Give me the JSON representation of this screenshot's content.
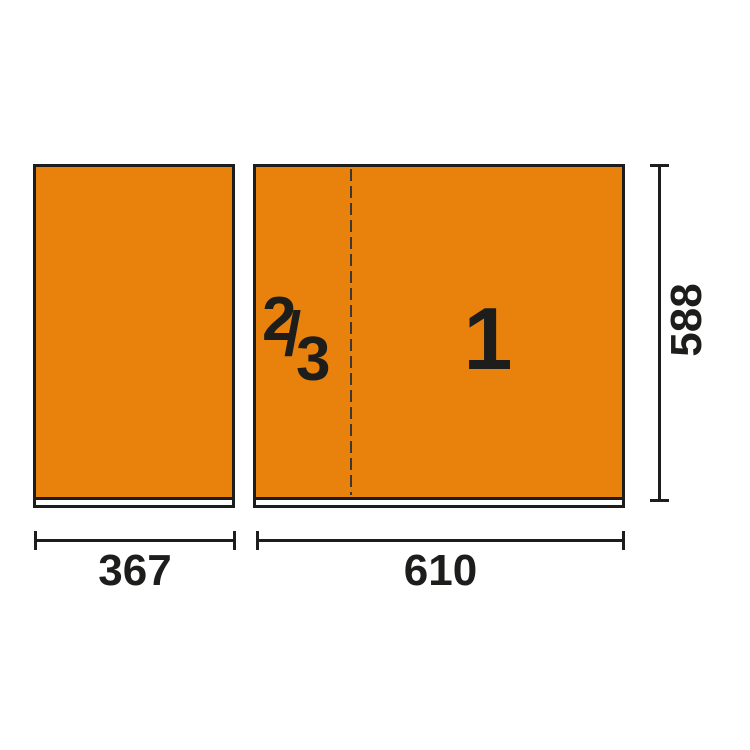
{
  "colors": {
    "background": "#ffffff",
    "panel_fill": "#e8820d",
    "outline": "#1d1d1b",
    "dashed_line": "#3d3731"
  },
  "panels": {
    "right": {
      "fraction_label": {
        "numerator": "2",
        "slash": "/",
        "denominator": "3"
      },
      "module_label": "1"
    }
  },
  "dimensions": {
    "left_width": "367",
    "right_width": "610",
    "height": "588"
  }
}
